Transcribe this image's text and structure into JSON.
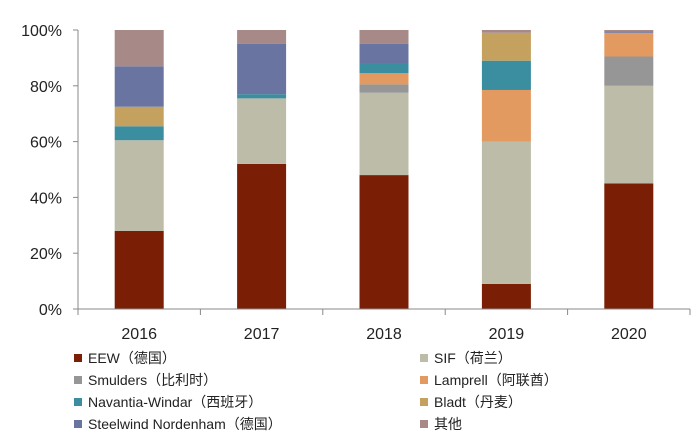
{
  "chart_data": {
    "type": "bar",
    "stacked": true,
    "percent": true,
    "categories": [
      "2016",
      "2017",
      "2018",
      "2019",
      "2020"
    ],
    "y_ticks": [
      "0%",
      "20%",
      "40%",
      "60%",
      "80%",
      "100%"
    ],
    "ylim": [
      0,
      100
    ],
    "grid": false,
    "legend_position": "bottom",
    "series": [
      {
        "name": "EEW（德国）",
        "color": "#7a1f06",
        "values": [
          28,
          52,
          48,
          9,
          45
        ]
      },
      {
        "name": "SIF（荷兰）",
        "color": "#bcbca8",
        "values": [
          32.5,
          23.5,
          29.5,
          51,
          35
        ]
      },
      {
        "name": "Smulders（比利时）",
        "color": "#969696",
        "values": [
          0,
          0,
          3,
          0,
          10.5
        ]
      },
      {
        "name": "Lamprell（阿联酋）",
        "color": "#e39a60",
        "values": [
          0,
          0,
          4,
          18.5,
          8.5
        ]
      },
      {
        "name": "Navantia-Windar（西班牙）",
        "color": "#3a8ea0",
        "values": [
          5,
          1.5,
          3.5,
          10.5,
          0
        ]
      },
      {
        "name": "Bladt（丹麦）",
        "color": "#c4a15f",
        "values": [
          7,
          0,
          0,
          10,
          0
        ]
      },
      {
        "name": "Steelwind Nordenham（德国）",
        "color": "#6a74a0",
        "values": [
          14.5,
          18,
          7,
          0,
          0.5
        ]
      },
      {
        "name": "其他",
        "color": "#a78988",
        "values": [
          13,
          5,
          5,
          1,
          0.5
        ]
      }
    ]
  }
}
